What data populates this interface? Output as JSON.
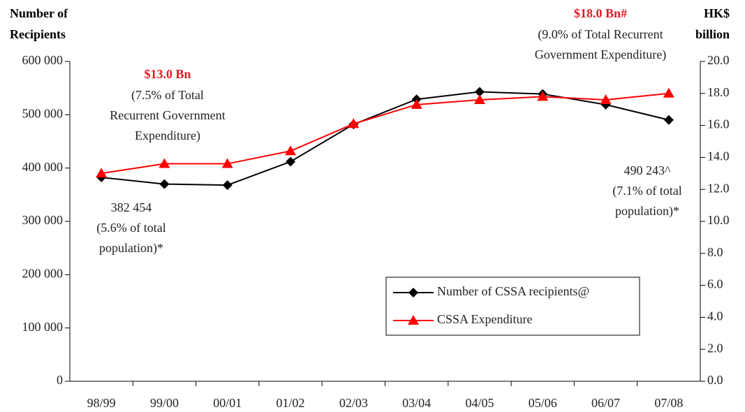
{
  "chart_data": {
    "type": "line",
    "y_label": [
      "Number of",
      "Recipients"
    ],
    "y2_label": [
      "HK$",
      "billion"
    ],
    "categories": [
      "98/99",
      "99/00",
      "00/01",
      "01/02",
      "02/03",
      "03/04",
      "04/05",
      "05/06",
      "06/07",
      "07/08"
    ],
    "series": [
      {
        "name": "Number of CSSA recipients@",
        "color": "#000000",
        "marker": "diamond",
        "values": [
          382454,
          370000,
          368000,
          412000,
          482000,
          529000,
          543000,
          539000,
          519000,
          490243
        ]
      },
      {
        "name": "CSSA Expenditure",
        "color": "#ff0000",
        "marker": "triangle",
        "axis": "y2",
        "values": [
          13.0,
          13.6,
          13.6,
          14.4,
          16.1,
          17.3,
          17.6,
          17.8,
          17.6,
          18.0
        ]
      }
    ],
    "ylim": [
      0,
      600000
    ],
    "yticks": [
      0,
      {
        "value": 100000,
        "label": "100 000"
      },
      {
        "value": 200000,
        "label": "200 000"
      },
      {
        "value": 300000,
        "label": "300 000"
      },
      {
        "value": 400000,
        "label": "400 000"
      },
      {
        "value": 500000,
        "label": "500 000"
      },
      {
        "value": 600000,
        "label": "600 000"
      }
    ],
    "y2lim": [
      0,
      20
    ],
    "y2ticks": [
      {
        "value": 0,
        "label": "0.0"
      },
      {
        "value": 2,
        "label": "2.0"
      },
      {
        "value": 4,
        "label": "4.0"
      },
      {
        "value": 6,
        "label": "6.0"
      },
      {
        "value": 8,
        "label": "8.0"
      },
      {
        "value": 10,
        "label": "10.0"
      },
      {
        "value": 12,
        "label": "12.0"
      },
      {
        "value": 14,
        "label": "14.0"
      },
      {
        "value": 16,
        "label": "16.0"
      },
      {
        "value": 18,
        "label": "18.0"
      },
      {
        "value": 20,
        "label": "20.0"
      }
    ],
    "annotations": [
      {
        "lines": [
          "$13.0 Bn",
          "(7.5% of Total",
          "Recurrent Government",
          "Expenditure)"
        ]
      },
      {
        "lines": [
          "$18.0 Bn#",
          "(9.0% of Total Recurrent",
          "Government Expenditure)"
        ]
      },
      {
        "lines": [
          "382 454",
          "(5.6% of total",
          "population)*"
        ]
      },
      {
        "lines": [
          "490 243^",
          "(7.1% of total",
          "population)*"
        ]
      }
    ],
    "legend": "lower right"
  }
}
